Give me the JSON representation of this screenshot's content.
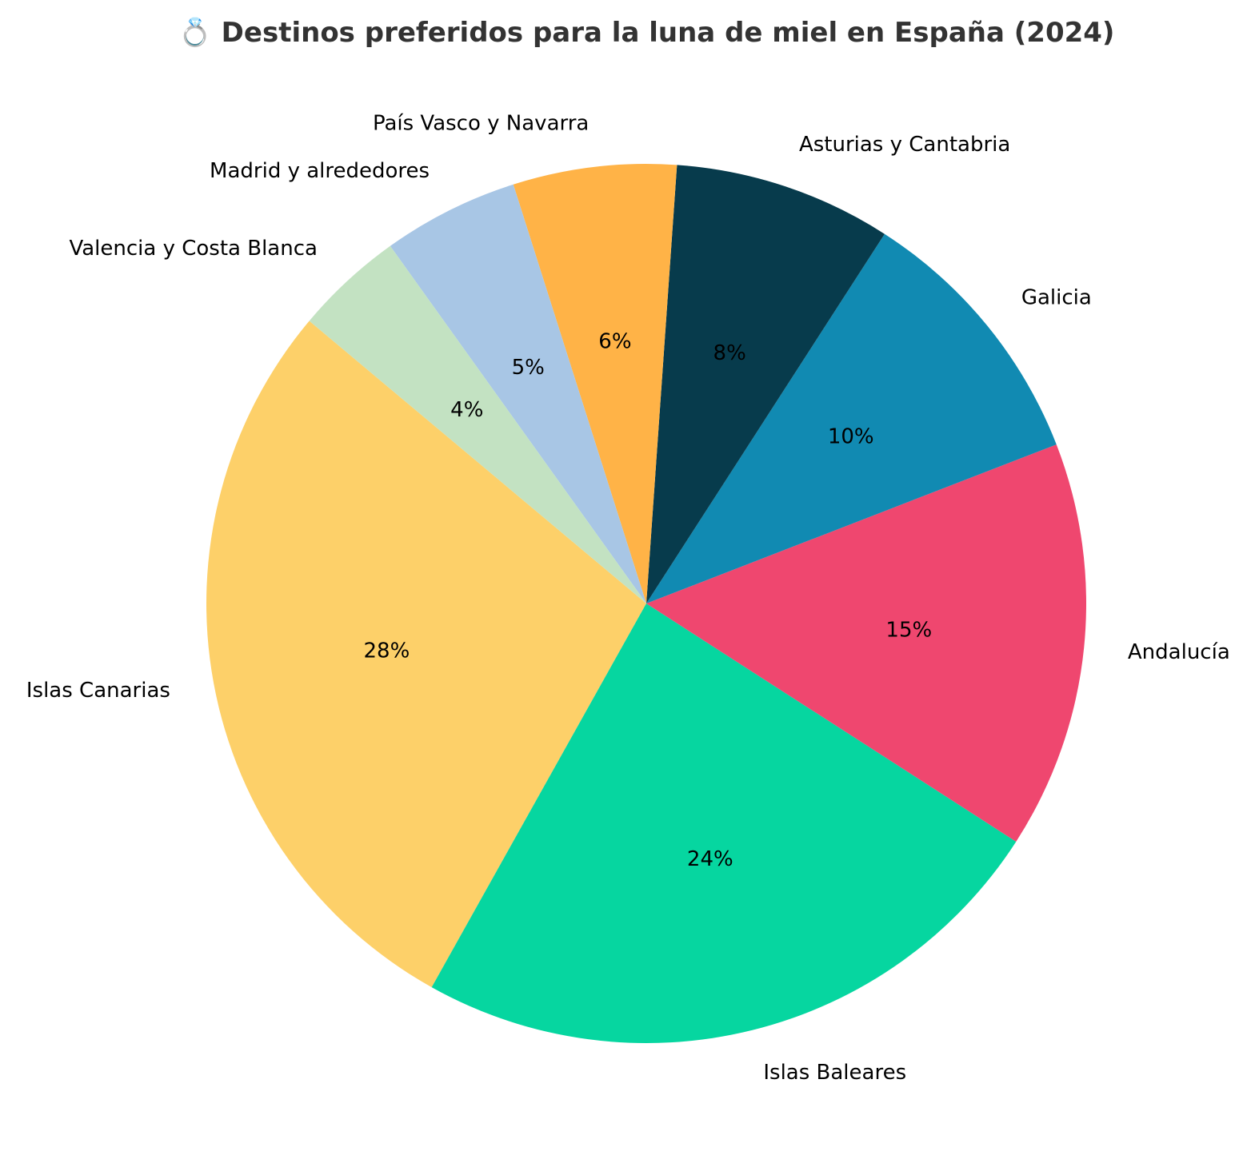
{
  "chart_data": {
    "type": "pie",
    "title": "💍 Destinos preferidos para la luna de miel en España (2024)",
    "slices": [
      {
        "label": "Islas Canarias",
        "value": 28,
        "display": "28%",
        "color": "#FDD069"
      },
      {
        "label": "Islas Baleares",
        "value": 24,
        "display": "24%",
        "color": "#06D6A0"
      },
      {
        "label": "Andalucía",
        "value": 15,
        "display": "15%",
        "color": "#EF476F"
      },
      {
        "label": "Galicia",
        "value": 10,
        "display": "10%",
        "color": "#118AB2"
      },
      {
        "label": "Asturias y Cantabria",
        "value": 8,
        "display": "8%",
        "color": "#073B4C"
      },
      {
        "label": "País Vasco y Navarra",
        "value": 6,
        "display": "6%",
        "color": "#FFB347"
      },
      {
        "label": "Madrid y alrededores",
        "value": 5,
        "display": "5%",
        "color": "#A8C6E5"
      },
      {
        "label": "Valencia y Costa Blanca",
        "value": 4,
        "display": "4%",
        "color": "#C3E2C2"
      }
    ]
  }
}
